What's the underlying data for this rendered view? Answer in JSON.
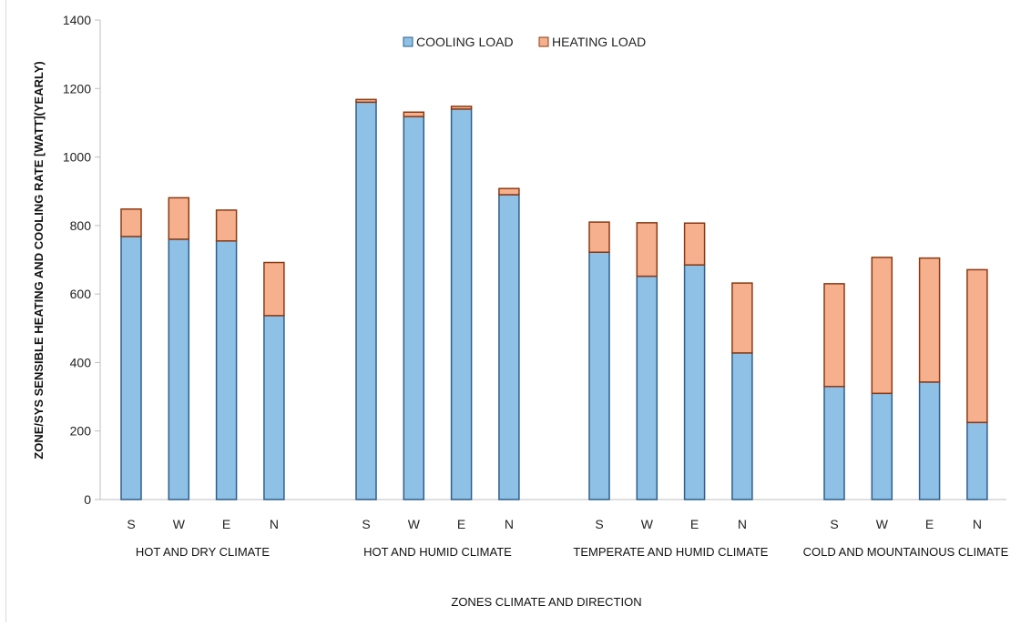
{
  "chart_data": {
    "type": "bar",
    "stacked": true,
    "ylabel": "ZONE/SYS SENSIBLE HEATING AND COOLING RATE [WATT](YEARLY)",
    "xlabel": "ZONES CLIMATE AND DIRECTION",
    "ylim": [
      0,
      1400
    ],
    "yticks": [
      0,
      200,
      400,
      600,
      800,
      1000,
      1200,
      1400
    ],
    "grid": false,
    "legend_position": "top-center",
    "groups": [
      {
        "label": "HOT AND DRY CLIMATE",
        "categories": [
          "S",
          "W",
          "E",
          "N"
        ]
      },
      {
        "label": "HOT AND HUMID CLIMATE",
        "categories": [
          "S",
          "W",
          "E",
          "N"
        ]
      },
      {
        "label": "TEMPERATE AND HUMID CLIMATE",
        "categories": [
          "S",
          "W",
          "E",
          "N"
        ]
      },
      {
        "label": "COLD AND MOUNTAINOUS CLIMATE",
        "categories": [
          "S",
          "W",
          "E",
          "N"
        ]
      }
    ],
    "series": [
      {
        "name": "COOLING LOAD",
        "color": "#8fc0e6",
        "edge": "#2e5f8a",
        "values": [
          768,
          760,
          755,
          537,
          1160,
          1118,
          1140,
          890,
          722,
          652,
          685,
          428,
          330,
          310,
          343,
          225
        ]
      },
      {
        "name": "HEATING LOAD",
        "color": "#f6b08e",
        "edge": "#8b3a12",
        "values": [
          80,
          121,
          90,
          155,
          8,
          13,
          8,
          18,
          88,
          156,
          122,
          204,
          300,
          397,
          362,
          446
        ]
      }
    ]
  }
}
